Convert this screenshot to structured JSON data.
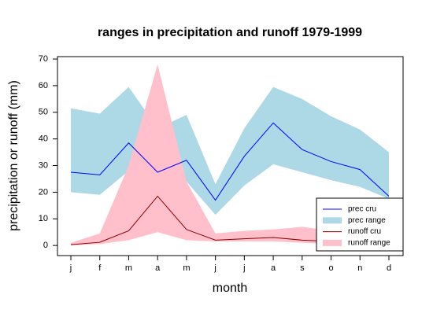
{
  "chart_data": {
    "type": "line",
    "title": "ranges in precipitation and runoff 1979-1999",
    "x_label": "month",
    "y_label": "precipitation or runoff (mm)",
    "categories": [
      "j",
      "f",
      "m",
      "a",
      "m",
      "j",
      "j",
      "a",
      "s",
      "o",
      "n",
      "d"
    ],
    "ylim": [
      -3.8,
      70.9
    ],
    "yticks": [
      0,
      10,
      20,
      30,
      40,
      50,
      60,
      70
    ],
    "legend": "bottom-right",
    "series": [
      {
        "name": "prec cru",
        "type": "line",
        "color": "#0000ff",
        "values": [
          27.5,
          26.5,
          38.5,
          27.5,
          32,
          17,
          33.5,
          46,
          36,
          31.5,
          28.5,
          18.5
        ]
      },
      {
        "name": "prec range",
        "type": "band",
        "color": "#add8e6",
        "upper": [
          51.5,
          49.5,
          59.5,
          44,
          49,
          23,
          44,
          59.5,
          55,
          48.5,
          43.5,
          35
        ],
        "lower": [
          20,
          19,
          28,
          23,
          24,
          11.5,
          22.5,
          30.5,
          27.5,
          24.5,
          22,
          17.5
        ]
      },
      {
        "name": "runoff cru",
        "type": "line",
        "color": "#8b0000",
        "values": [
          0.3,
          1.2,
          5.5,
          18.5,
          6,
          2,
          2.5,
          3,
          2,
          1.5,
          1,
          1
        ]
      },
      {
        "name": "runoff range",
        "type": "band",
        "color": "#ffc0cb",
        "upper": [
          1,
          4.5,
          30,
          68,
          24,
          4.5,
          5.5,
          6,
          7,
          5.5,
          4,
          3.5
        ],
        "lower": [
          0,
          0.5,
          2,
          5,
          2,
          1.5,
          1.5,
          1.5,
          1,
          0.5,
          0.5,
          0.5
        ]
      }
    ]
  }
}
